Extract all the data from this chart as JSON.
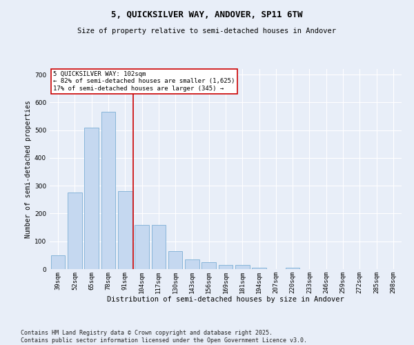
{
  "title1": "5, QUICKSILVER WAY, ANDOVER, SP11 6TW",
  "title2": "Size of property relative to semi-detached houses in Andover",
  "xlabel": "Distribution of semi-detached houses by size in Andover",
  "ylabel": "Number of semi-detached properties",
  "categories": [
    "39sqm",
    "52sqm",
    "65sqm",
    "78sqm",
    "91sqm",
    "104sqm",
    "117sqm",
    "130sqm",
    "143sqm",
    "156sqm",
    "169sqm",
    "181sqm",
    "194sqm",
    "207sqm",
    "220sqm",
    "233sqm",
    "246sqm",
    "259sqm",
    "272sqm",
    "285sqm",
    "298sqm"
  ],
  "values": [
    50,
    275,
    510,
    565,
    280,
    160,
    160,
    65,
    35,
    25,
    15,
    15,
    5,
    0,
    5,
    0,
    0,
    0,
    0,
    0,
    0
  ],
  "bar_color": "#c5d8f0",
  "bar_edge_color": "#7aaed4",
  "red_line_index": 5,
  "annotation_text": "5 QUICKSILVER WAY: 102sqm\n← 82% of semi-detached houses are smaller (1,625)\n17% of semi-detached houses are larger (345) →",
  "annotation_box_color": "#ffffff",
  "annotation_edge_color": "#cc0000",
  "red_line_color": "#cc0000",
  "ylim": [
    0,
    720
  ],
  "yticks": [
    0,
    100,
    200,
    300,
    400,
    500,
    600,
    700
  ],
  "footer_text": "Contains HM Land Registry data © Crown copyright and database right 2025.\nContains public sector information licensed under the Open Government Licence v3.0.",
  "bg_color": "#e8eef8",
  "plot_bg_color": "#e8eef8",
  "title1_fontsize": 9,
  "title2_fontsize": 7.5,
  "xlabel_fontsize": 7.5,
  "ylabel_fontsize": 7,
  "tick_fontsize": 6.5,
  "annotation_fontsize": 6.5,
  "footer_fontsize": 6
}
